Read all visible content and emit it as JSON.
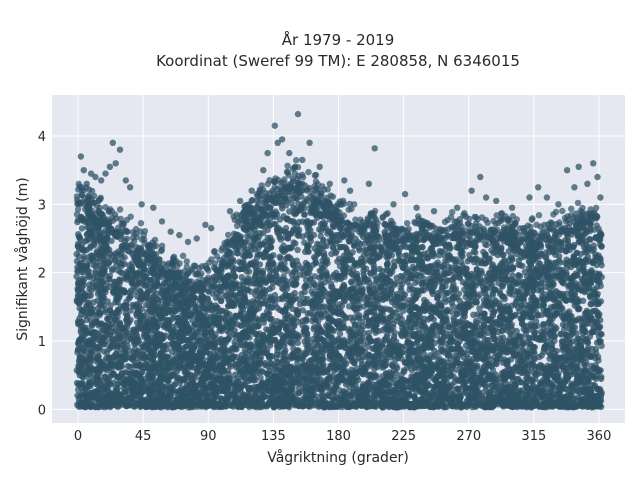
{
  "chart_data": {
    "type": "scatter",
    "title_lines": [
      "År 1979 - 2019",
      "Koordinat (Sweref 99 TM): E 280858, N 6346015"
    ],
    "xlabel": "Vågriktning (grader)",
    "ylabel": "Signifikant våghöjd (m)",
    "xlim": [
      -18,
      378
    ],
    "ylim": [
      -0.2,
      4.6
    ],
    "xticks": [
      0,
      45,
      90,
      135,
      180,
      225,
      270,
      315,
      360
    ],
    "yticks": [
      0,
      1,
      2,
      3,
      4
    ],
    "grid": true,
    "legend": "none",
    "point_color": "#2f5366",
    "background_color": "#e5e8f0",
    "upper_envelope": {
      "x": [
        0,
        10,
        20,
        30,
        40,
        50,
        60,
        70,
        80,
        90,
        100,
        110,
        120,
        130,
        140,
        150,
        160,
        170,
        180,
        190,
        200,
        210,
        220,
        230,
        240,
        250,
        260,
        270,
        280,
        290,
        300,
        310,
        320,
        330,
        340,
        350,
        360
      ],
      "y": [
        3.1,
        2.95,
        2.8,
        2.6,
        2.45,
        2.25,
        2.05,
        1.95,
        1.85,
        1.9,
        2.2,
        2.6,
        2.9,
        3.05,
        3.2,
        3.35,
        3.25,
        3.0,
        2.8,
        2.7,
        2.65,
        2.6,
        2.6,
        2.55,
        2.55,
        2.55,
        2.6,
        2.55,
        2.6,
        2.6,
        2.55,
        2.5,
        2.55,
        2.6,
        2.7,
        2.8,
        2.6
      ]
    },
    "outliers": [
      {
        "x": 2,
        "y": 3.7
      },
      {
        "x": 4,
        "y": 3.5
      },
      {
        "x": 6,
        "y": 3.3
      },
      {
        "x": 9,
        "y": 3.45
      },
      {
        "x": 12,
        "y": 3.4
      },
      {
        "x": 16,
        "y": 3.35
      },
      {
        "x": 19,
        "y": 3.45
      },
      {
        "x": 22,
        "y": 3.55
      },
      {
        "x": 24,
        "y": 3.9
      },
      {
        "x": 26,
        "y": 3.6
      },
      {
        "x": 29,
        "y": 3.8
      },
      {
        "x": 33,
        "y": 3.35
      },
      {
        "x": 36,
        "y": 3.25
      },
      {
        "x": 44,
        "y": 3.0
      },
      {
        "x": 52,
        "y": 2.95
      },
      {
        "x": 58,
        "y": 2.75
      },
      {
        "x": 64,
        "y": 2.6
      },
      {
        "x": 70,
        "y": 2.55
      },
      {
        "x": 76,
        "y": 2.45
      },
      {
        "x": 82,
        "y": 2.5
      },
      {
        "x": 88,
        "y": 2.7
      },
      {
        "x": 92,
        "y": 2.65
      },
      {
        "x": 105,
        "y": 2.9
      },
      {
        "x": 112,
        "y": 3.05
      },
      {
        "x": 120,
        "y": 3.2
      },
      {
        "x": 128,
        "y": 3.5
      },
      {
        "x": 131,
        "y": 3.75
      },
      {
        "x": 136,
        "y": 4.15
      },
      {
        "x": 138,
        "y": 3.9
      },
      {
        "x": 141,
        "y": 3.95
      },
      {
        "x": 146,
        "y": 3.75
      },
      {
        "x": 150,
        "y": 3.55
      },
      {
        "x": 152,
        "y": 4.32
      },
      {
        "x": 155,
        "y": 3.65
      },
      {
        "x": 160,
        "y": 3.9
      },
      {
        "x": 167,
        "y": 3.55
      },
      {
        "x": 174,
        "y": 3.3
      },
      {
        "x": 184,
        "y": 3.35
      },
      {
        "x": 188,
        "y": 3.2
      },
      {
        "x": 201,
        "y": 3.3
      },
      {
        "x": 205,
        "y": 3.82
      },
      {
        "x": 218,
        "y": 3.0
      },
      {
        "x": 226,
        "y": 3.15
      },
      {
        "x": 234,
        "y": 2.95
      },
      {
        "x": 246,
        "y": 2.9
      },
      {
        "x": 262,
        "y": 2.95
      },
      {
        "x": 272,
        "y": 3.2
      },
      {
        "x": 278,
        "y": 3.4
      },
      {
        "x": 282,
        "y": 3.1
      },
      {
        "x": 289,
        "y": 3.05
      },
      {
        "x": 300,
        "y": 2.95
      },
      {
        "x": 312,
        "y": 3.1
      },
      {
        "x": 318,
        "y": 3.25
      },
      {
        "x": 324,
        "y": 3.1
      },
      {
        "x": 332,
        "y": 3.0
      },
      {
        "x": 338,
        "y": 3.5
      },
      {
        "x": 343,
        "y": 3.25
      },
      {
        "x": 346,
        "y": 3.55
      },
      {
        "x": 352,
        "y": 3.3
      },
      {
        "x": 356,
        "y": 3.6
      },
      {
        "x": 359,
        "y": 3.4
      },
      {
        "x": 361,
        "y": 3.1
      }
    ]
  }
}
